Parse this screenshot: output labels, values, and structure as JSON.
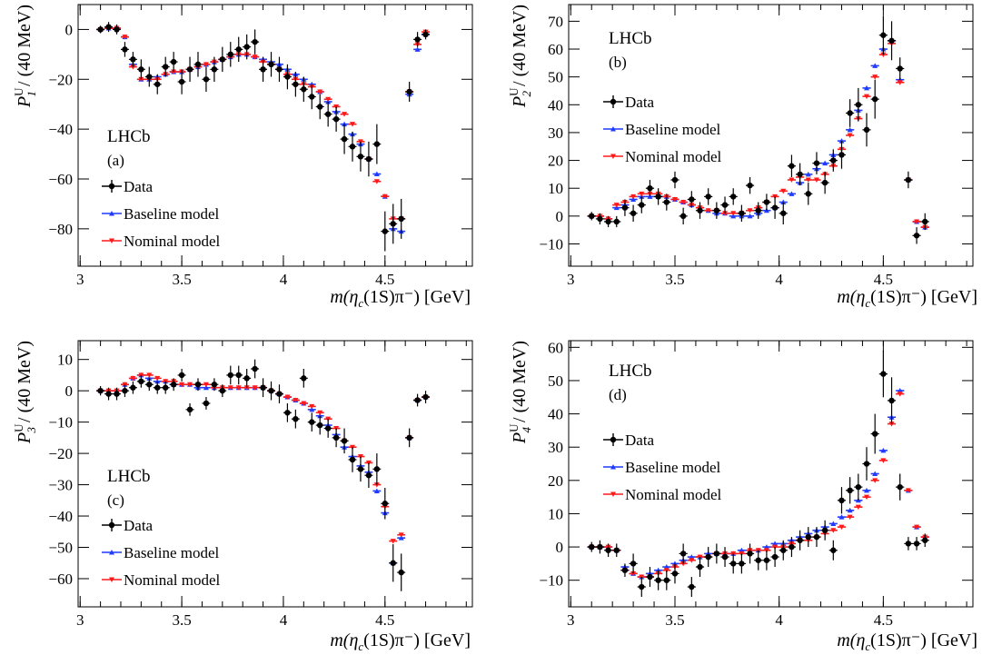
{
  "colors": {
    "data": "#000000",
    "baseline": "#1f3cff",
    "nominal": "#ff1a1a"
  },
  "legend": {
    "experiment": "LHCb",
    "data_label": "Data",
    "baseline_label": "Baseline model",
    "nominal_label": "Nominal model"
  },
  "chart_data": [
    {
      "type": "scatter",
      "tag": "(a)",
      "ylabel": {
        "P": "P",
        "sup": "U",
        "sub": "1",
        "rest": " / (40 MeV)"
      },
      "xlabel": {
        "m": "m(η",
        "sub": "c",
        "rest": "(1S)π⁻) [GeV]"
      },
      "xlim": [
        2.99,
        4.93
      ],
      "ylim": [
        -95,
        10
      ],
      "xticks": [
        "3",
        "3.5",
        "4",
        "4.5"
      ],
      "yticks": [
        "0",
        "−20",
        "−40",
        "−60",
        "−80"
      ],
      "ytick_values": [
        0,
        -20,
        -40,
        -60,
        -80
      ],
      "xtick_values": [
        3,
        3.5,
        4,
        4.5
      ],
      "x": [
        3.1,
        3.14,
        3.18,
        3.22,
        3.26,
        3.3,
        3.34,
        3.38,
        3.42,
        3.46,
        3.5,
        3.54,
        3.58,
        3.62,
        3.66,
        3.7,
        3.74,
        3.78,
        3.82,
        3.86,
        3.9,
        3.94,
        3.98,
        4.02,
        4.06,
        4.1,
        4.14,
        4.18,
        4.22,
        4.26,
        4.3,
        4.34,
        4.38,
        4.42,
        4.46,
        4.5,
        4.54,
        4.58,
        4.62,
        4.66,
        4.7
      ],
      "series": [
        {
          "name": "Data",
          "y": [
            0,
            1,
            0,
            -8,
            -12,
            -16,
            -19,
            -22,
            -15,
            -13,
            -21,
            -16,
            -14,
            -20,
            -16,
            -12,
            -10,
            -8,
            -7,
            -5,
            -16,
            -14,
            -16,
            -19,
            -22,
            -24,
            -27,
            -31,
            -34,
            -36,
            -44,
            -47,
            -51,
            -52,
            -46,
            -81,
            -78,
            -76,
            -25,
            -4,
            -2
          ],
          "err": [
            1.5,
            2,
            2,
            3,
            3,
            4,
            4,
            4,
            4,
            4,
            5,
            5,
            5,
            5,
            5,
            5,
            5,
            5,
            5,
            5,
            5,
            5,
            5,
            5,
            5,
            5,
            5,
            5,
            5,
            5,
            6,
            6,
            6,
            7,
            8,
            8,
            8,
            8,
            4,
            3,
            2
          ]
        },
        {
          "name": "Baseline model",
          "y": [
            0,
            0.5,
            0.5,
            -3,
            -14,
            -20,
            -20,
            -19,
            -18,
            -17,
            -17,
            -16,
            -15,
            -14,
            -13,
            -12,
            -11,
            -10,
            -10,
            -11,
            -12,
            -13,
            -14,
            -16,
            -18,
            -20,
            -22,
            -25,
            -29,
            -33,
            -38,
            -42,
            -46,
            -52,
            -58,
            -67,
            -80,
            -81,
            -26,
            -8,
            -2
          ]
        },
        {
          "name": "Nominal model",
          "y": [
            0,
            0.5,
            0.5,
            -3,
            -15,
            -20,
            -20,
            -20,
            -18,
            -17,
            -17,
            -16,
            -15,
            -14,
            -13,
            -12,
            -11,
            -10,
            -10,
            -11,
            -13,
            -14,
            -16,
            -18,
            -20,
            -22,
            -23,
            -25,
            -28,
            -31,
            -34,
            -38,
            -45,
            -52,
            -61,
            -67,
            -76,
            -76,
            -25,
            -6,
            -1
          ]
        }
      ]
    },
    {
      "type": "scatter",
      "tag": "(b)",
      "ylabel": {
        "P": "P",
        "sup": "U",
        "sub": "2",
        "rest": " / (40 MeV)"
      },
      "xlabel": {
        "m": "m(η",
        "sub": "c",
        "rest": "(1S)π⁻) [GeV]"
      },
      "xlim": [
        2.99,
        4.93
      ],
      "ylim": [
        -18,
        76
      ],
      "xticks": [
        "3",
        "3.5",
        "4",
        "4.5"
      ],
      "yticks": [
        "70",
        "60",
        "50",
        "40",
        "30",
        "20",
        "10",
        "0",
        "−10"
      ],
      "ytick_values": [
        70,
        60,
        50,
        40,
        30,
        20,
        10,
        0,
        -10
      ],
      "xtick_values": [
        3,
        3.5,
        4,
        4.5
      ],
      "x": [
        3.1,
        3.14,
        3.18,
        3.22,
        3.26,
        3.3,
        3.34,
        3.38,
        3.42,
        3.46,
        3.5,
        3.54,
        3.58,
        3.62,
        3.66,
        3.7,
        3.74,
        3.78,
        3.82,
        3.86,
        3.9,
        3.94,
        3.98,
        4.02,
        4.06,
        4.1,
        4.14,
        4.18,
        4.22,
        4.26,
        4.3,
        4.34,
        4.38,
        4.42,
        4.46,
        4.5,
        4.54,
        4.58,
        4.62,
        4.66,
        4.7
      ],
      "series": [
        {
          "name": "Data",
          "y": [
            0,
            -1,
            -2,
            -2,
            3,
            1,
            4,
            10,
            7,
            5,
            13,
            0,
            6,
            2,
            7,
            2,
            4,
            7,
            1,
            11,
            2,
            5,
            3,
            1,
            18,
            15,
            8,
            19,
            12,
            20,
            22,
            37,
            40,
            31,
            42,
            65,
            63,
            53,
            13,
            -7,
            -2
          ],
          "err": [
            1.5,
            2,
            2,
            2,
            3,
            3,
            3,
            3,
            3,
            3,
            3,
            3,
            3,
            3,
            3,
            3,
            3,
            3,
            3,
            3,
            3,
            3,
            4,
            4,
            4,
            4,
            4,
            4,
            4,
            4,
            5,
            5,
            6,
            6,
            7,
            7,
            7,
            4,
            3,
            3,
            3
          ]
        },
        {
          "name": "Baseline model",
          "y": [
            0,
            0,
            -1,
            3,
            4,
            6,
            7,
            7,
            7,
            7,
            6,
            5,
            4,
            3,
            2,
            1,
            1,
            0,
            0,
            0,
            1,
            2,
            3,
            5,
            8,
            12,
            15,
            17,
            19,
            22,
            27,
            31,
            38,
            46,
            54,
            60,
            63,
            49,
            13,
            -2,
            -4
          ]
        },
        {
          "name": "Nominal model",
          "y": [
            0,
            0,
            -1,
            4,
            5,
            7,
            8,
            8,
            8,
            7,
            6,
            5,
            4,
            3,
            2,
            2,
            1,
            1,
            1,
            2,
            3,
            5,
            7,
            9,
            13,
            14,
            13,
            13,
            15,
            18,
            24,
            29,
            35,
            43,
            50,
            58,
            62,
            48,
            13,
            -2,
            -4
          ]
        }
      ]
    },
    {
      "type": "scatter",
      "tag": "(c)",
      "ylabel": {
        "P": "P",
        "sup": "U",
        "sub": "3",
        "rest": " / (40 MeV)"
      },
      "xlabel": {
        "m": "m(η",
        "sub": "c",
        "rest": "(1S)π⁻) [GeV]"
      },
      "xlim": [
        2.99,
        4.93
      ],
      "ylim": [
        -69,
        16
      ],
      "xticks": [
        "3",
        "3.5",
        "4",
        "4.5"
      ],
      "yticks": [
        "10",
        "0",
        "−10",
        "−20",
        "−30",
        "−40",
        "−50",
        "−60"
      ],
      "ytick_values": [
        10,
        0,
        -10,
        -20,
        -30,
        -40,
        -50,
        -60
      ],
      "xtick_values": [
        3,
        3.5,
        4,
        4.5
      ],
      "x": [
        3.1,
        3.14,
        3.18,
        3.22,
        3.26,
        3.3,
        3.34,
        3.38,
        3.42,
        3.46,
        3.5,
        3.54,
        3.58,
        3.62,
        3.66,
        3.7,
        3.74,
        3.78,
        3.82,
        3.86,
        3.9,
        3.94,
        3.98,
        4.02,
        4.06,
        4.1,
        4.14,
        4.18,
        4.22,
        4.26,
        4.3,
        4.34,
        4.38,
        4.42,
        4.46,
        4.5,
        4.54,
        4.58,
        4.62,
        4.66,
        4.7
      ],
      "series": [
        {
          "name": "Data",
          "y": [
            0,
            -1,
            -1,
            0,
            1,
            3,
            2,
            1,
            1,
            2,
            5,
            -6,
            2,
            -4,
            2,
            0,
            5,
            5,
            4,
            7,
            1,
            0,
            -1,
            -7,
            -9,
            4,
            -10,
            -11,
            -12,
            -15,
            -16,
            -22,
            -25,
            -27,
            -25,
            -36,
            -55,
            -58,
            -15,
            -3,
            -2
          ],
          "err": [
            1.5,
            2,
            2,
            2,
            2,
            2,
            2,
            2,
            2,
            2,
            2,
            2,
            2,
            2,
            2,
            2,
            3,
            3,
            3,
            3,
            3,
            3,
            3,
            3,
            3,
            3,
            3,
            3,
            3,
            3,
            4,
            4,
            4,
            4,
            5,
            5,
            6,
            6,
            3,
            2,
            2
          ]
        },
        {
          "name": "Baseline model",
          "y": [
            0,
            0,
            0,
            2,
            4,
            5,
            4,
            3,
            3,
            2,
            2,
            2,
            1,
            1,
            1,
            1,
            1,
            1,
            1,
            1,
            1,
            0,
            -1,
            -2,
            -3,
            -4,
            -6,
            -8,
            -11,
            -14,
            -18,
            -21,
            -24,
            -26,
            -32,
            -39,
            -55,
            -47,
            -15,
            -3,
            -2
          ]
        },
        {
          "name": "Nominal model",
          "y": [
            0,
            0,
            0,
            2,
            4,
            5,
            5,
            4,
            3,
            3,
            2,
            2,
            2,
            2,
            1,
            1,
            1,
            1,
            1,
            1,
            1,
            0,
            -1,
            -2,
            -3,
            -4,
            -5,
            -7,
            -9,
            -12,
            -16,
            -18,
            -21,
            -23,
            -30,
            -37,
            -48,
            -46,
            -15,
            -3,
            -2
          ]
        }
      ]
    },
    {
      "type": "scatter",
      "tag": "(d)",
      "ylabel": {
        "P": "P",
        "sup": "U",
        "sub": "4",
        "rest": " / (40 MeV)"
      },
      "xlabel": {
        "m": "m(η",
        "sub": "c",
        "rest": "(1S)π⁻) [GeV]"
      },
      "xlim": [
        2.99,
        4.93
      ],
      "ylim": [
        -18,
        62
      ],
      "xticks": [
        "3",
        "3.5",
        "4",
        "4.5"
      ],
      "yticks": [
        "60",
        "50",
        "40",
        "30",
        "20",
        "10",
        "0",
        "−10"
      ],
      "ytick_values": [
        60,
        50,
        40,
        30,
        20,
        10,
        0,
        -10
      ],
      "xtick_values": [
        3,
        3.5,
        4,
        4.5
      ],
      "x": [
        3.1,
        3.14,
        3.18,
        3.22,
        3.26,
        3.3,
        3.34,
        3.38,
        3.42,
        3.46,
        3.5,
        3.54,
        3.58,
        3.62,
        3.66,
        3.7,
        3.74,
        3.78,
        3.82,
        3.86,
        3.9,
        3.94,
        3.98,
        4.02,
        4.06,
        4.1,
        4.14,
        4.18,
        4.22,
        4.26,
        4.3,
        4.34,
        4.38,
        4.42,
        4.46,
        4.5,
        4.54,
        4.58,
        4.62,
        4.66,
        4.7
      ],
      "series": [
        {
          "name": "Data",
          "y": [
            0,
            0,
            -1,
            -1,
            -7,
            -5,
            -12,
            -9,
            -10,
            -10,
            -8,
            -2,
            -12,
            -6,
            -3,
            -2,
            -3,
            -5,
            -5,
            -2,
            -4,
            -4,
            -3,
            -1,
            0,
            2,
            3,
            3,
            5,
            -1,
            14,
            17,
            18,
            25,
            34,
            52,
            44,
            18,
            1,
            1,
            2
          ],
          "err": [
            1.5,
            2,
            2,
            2,
            2,
            3,
            3,
            3,
            3,
            3,
            3,
            3,
            3,
            3,
            3,
            3,
            3,
            3,
            3,
            3,
            3,
            3,
            3,
            3,
            3,
            3,
            3,
            3,
            3,
            3,
            4,
            4,
            4,
            5,
            6,
            7,
            7,
            4,
            2,
            2,
            2
          ]
        },
        {
          "name": "Baseline model",
          "y": [
            0,
            0,
            0,
            -1,
            -6,
            -8,
            -9,
            -8,
            -7,
            -6,
            -5,
            -4,
            -3,
            -3,
            -2,
            -2,
            -2,
            -2,
            -1,
            -1,
            -1,
            0,
            1,
            1,
            2,
            3,
            4,
            5,
            6,
            7,
            9,
            11,
            14,
            17,
            22,
            29,
            39,
            47,
            17,
            6,
            3
          ]
        },
        {
          "name": "Nominal model",
          "y": [
            0,
            0,
            0,
            -1,
            -7,
            -8,
            -9,
            -9,
            -8,
            -7,
            -6,
            -5,
            -4,
            -3,
            -3,
            -2,
            -2,
            -2,
            -2,
            -1,
            -1,
            -1,
            0,
            0,
            1,
            2,
            2,
            3,
            4,
            5,
            6,
            9,
            12,
            15,
            20,
            26,
            37,
            46,
            17,
            6,
            3
          ]
        }
      ]
    }
  ]
}
